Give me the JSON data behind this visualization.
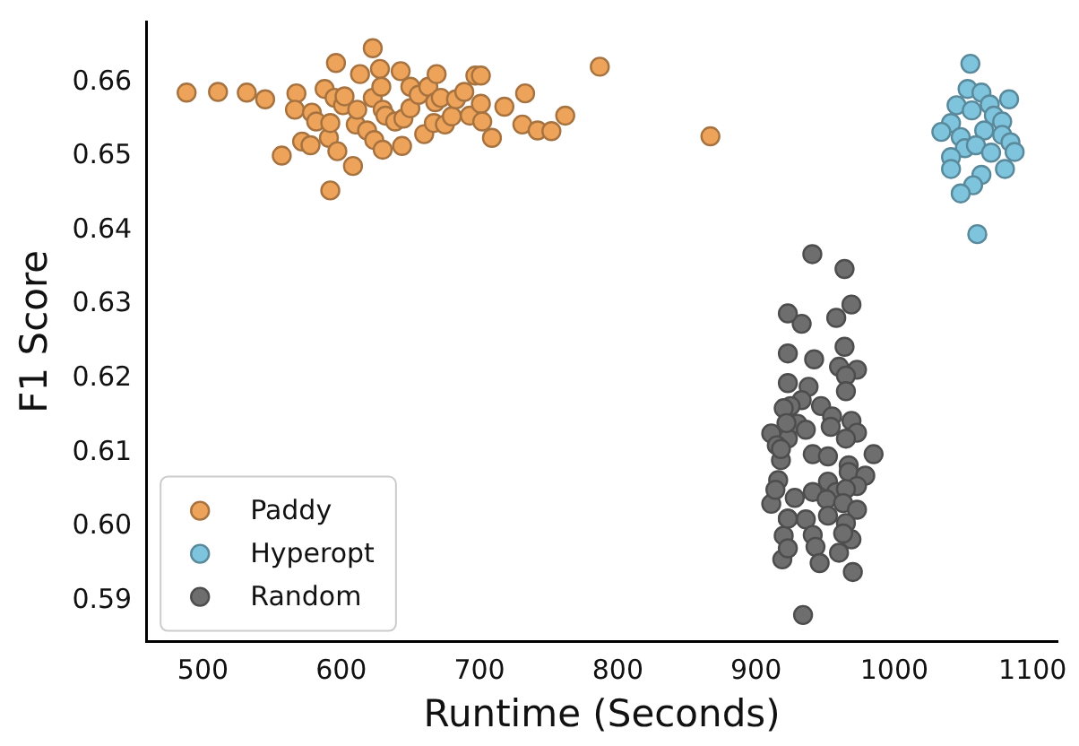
{
  "chart_data": {
    "type": "scatter",
    "xlabel": "Runtime (Seconds)",
    "ylabel": "F1 Score",
    "xlim": [
      459,
      1118
    ],
    "ylim": [
      0.5845,
      0.6682
    ],
    "xticks": [
      500,
      600,
      700,
      800,
      900,
      1000,
      1100
    ],
    "yticks": [
      0.59,
      {
        "value": 0.6,
        "label": "0.60"
      },
      0.61,
      0.62,
      0.63,
      0.64,
      0.65,
      0.66
    ],
    "grid": false,
    "legend": "bottom left",
    "marker": "circle",
    "series": [
      {
        "name": "Paddy",
        "color": "#eda35a",
        "x": [
          488.2,
          510.9,
          531.7,
          545,
          557,
          567.6,
          566.5,
          571.7,
          577.8,
          578.8,
          581.9,
          588,
          591.1,
          592.1,
          592.1,
          595.2,
          596.2,
          597.2,
          601.3,
          602.4,
          608.5,
          610.5,
          611.6,
          613.6,
          618.7,
          622.8,
          623.9,
          622.8,
          628,
          630,
          630,
          629,
          632,
          639,
          643,
          644,
          645,
          650,
          650,
          656,
          660,
          663,
          667,
          668,
          669,
          672,
          675,
          680,
          683,
          689,
          693,
          697,
          701,
          701,
          702,
          709,
          718,
          733,
          731,
          742,
          752,
          762,
          787,
          867
        ],
        "values": [
          0.6586,
          0.6587,
          0.6586,
          0.6577,
          0.6501,
          0.6585,
          0.6563,
          0.652,
          0.6515,
          0.6559,
          0.6547,
          0.6591,
          0.6525,
          0.6545,
          0.6454,
          0.6579,
          0.6626,
          0.6507,
          0.6569,
          0.6581,
          0.6487,
          0.6543,
          0.6563,
          0.6611,
          0.6535,
          0.6646,
          0.6522,
          0.6579,
          0.6618,
          0.6509,
          0.6563,
          0.6594,
          0.6555,
          0.6547,
          0.6615,
          0.6514,
          0.6551,
          0.6565,
          0.6594,
          0.6583,
          0.653,
          0.6594,
          0.6545,
          0.6573,
          0.6611,
          0.6579,
          0.6543,
          0.6554,
          0.6577,
          0.6587,
          0.6555,
          0.6609,
          0.6609,
          0.6571,
          0.6547,
          0.6525,
          0.6567,
          0.6585,
          0.6543,
          0.6535,
          0.6534,
          0.6555,
          0.6621,
          0.6527
        ]
      },
      {
        "name": "Hyperopt",
        "color": "#7fc4dd",
        "x": [
          1055,
          1053,
          1063,
          1083,
          1045,
          1056,
          1069,
          1041,
          1072,
          1078,
          1034,
          1048,
          1065,
          1078,
          1084,
          1051,
          1059,
          1070,
          1087,
          1041,
          1041,
          1063,
          1080,
          1057,
          1048,
          1060
        ],
        "values": [
          0.6625,
          0.6591,
          0.6586,
          0.6577,
          0.6569,
          0.6562,
          0.657,
          0.6545,
          0.6555,
          0.6547,
          0.6533,
          0.6526,
          0.6535,
          0.6529,
          0.6519,
          0.6511,
          0.6515,
          0.6505,
          0.6506,
          0.6499,
          0.6483,
          0.6475,
          0.6483,
          0.6461,
          0.645,
          0.6395
        ]
      },
      {
        "name": "Random",
        "color": "#6e6e6e",
        "x": [
          940.7,
          964,
          969,
          958,
          933,
          923,
          964,
          942,
          923,
          960,
          973,
          965,
          923,
          938,
          965,
          933,
          947,
          925,
          955,
          969,
          930,
          954,
          973,
          923,
          965,
          936,
          941,
          952,
          985,
          967,
          967,
          979,
          952,
          973,
          941,
          928,
          958,
          965,
          951,
          963,
          973,
          952,
          936,
          923,
          965,
          969,
          941,
          943,
          963,
          960,
          946,
          970,
          934,
          911,
          920,
          919,
          923,
          923,
          911,
          915,
          918,
          916,
          914,
          920,
          922,
          918
        ],
        "values": [
          0.6368,
          0.6348,
          0.63,
          0.6282,
          0.6274,
          0.6288,
          0.6243,
          0.6226,
          0.6234,
          0.6216,
          0.6212,
          0.6204,
          0.6194,
          0.6189,
          0.6183,
          0.6171,
          0.6163,
          0.6163,
          0.6149,
          0.6143,
          0.6139,
          0.6135,
          0.6127,
          0.6119,
          0.6119,
          0.6131,
          0.6098,
          0.6095,
          0.6098,
          0.6083,
          0.6074,
          0.6069,
          0.6061,
          0.6055,
          0.6047,
          0.6039,
          0.6047,
          0.6051,
          0.6037,
          0.6032,
          0.6023,
          0.6015,
          0.601,
          0.6011,
          0.6005,
          0.5983,
          0.5989,
          0.5973,
          0.5991,
          0.5965,
          0.5951,
          0.5939,
          0.5881,
          0.6031,
          0.5988,
          0.5956,
          0.5971,
          0.6011,
          0.6126,
          0.611,
          0.609,
          0.6063,
          0.605,
          0.616,
          0.614,
          0.6105
        ]
      }
    ]
  }
}
